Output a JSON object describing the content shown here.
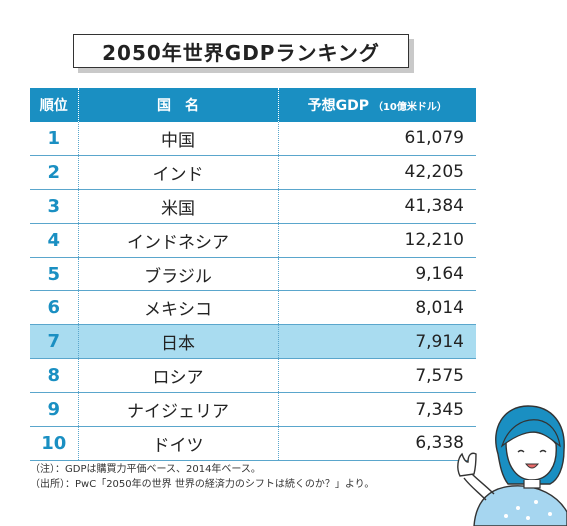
{
  "title": "2050年世界GDPランキング",
  "table": {
    "headers": {
      "rank": "順位",
      "country": "国　名",
      "gdp": "予想GDP",
      "gdp_unit": "（10億米ドル）"
    },
    "rows": [
      {
        "rank": "1",
        "country": "中国",
        "gdp": "61,079"
      },
      {
        "rank": "2",
        "country": "インド",
        "gdp": "42,205"
      },
      {
        "rank": "3",
        "country": "米国",
        "gdp": "41,384"
      },
      {
        "rank": "4",
        "country": "インドネシア",
        "gdp": "12,210"
      },
      {
        "rank": "5",
        "country": "ブラジル",
        "gdp": "9,164"
      },
      {
        "rank": "6",
        "country": "メキシコ",
        "gdp": "8,014"
      },
      {
        "rank": "7",
        "country": "日本",
        "gdp": "7,914"
      },
      {
        "rank": "8",
        "country": "ロシア",
        "gdp": "7,575"
      },
      {
        "rank": "9",
        "country": "ナイジェリア",
        "gdp": "7,345"
      },
      {
        "rank": "10",
        "country": "ドイツ",
        "gdp": "6,338"
      }
    ],
    "highlight_rank": "7",
    "highlight_color": "#a9dcf0",
    "header_color": "#1a8fc2"
  },
  "chart_data": {
    "type": "table",
    "title": "2050年世界GDPランキング",
    "columns": [
      "順位",
      "国　名",
      "予想GDP（10億米ドル）"
    ],
    "rows": [
      [
        1,
        "中国",
        61079
      ],
      [
        2,
        "インド",
        42205
      ],
      [
        3,
        "米国",
        41384
      ],
      [
        4,
        "インドネシア",
        12210
      ],
      [
        5,
        "ブラジル",
        9164
      ],
      [
        6,
        "メキシコ",
        8014
      ],
      [
        7,
        "日本",
        7914
      ],
      [
        8,
        "ロシア",
        7575
      ],
      [
        9,
        "ナイジェリア",
        7345
      ],
      [
        10,
        "ドイツ",
        6338
      ]
    ]
  },
  "notes": [
    "（注）：GDPは購買力平価ベース、2014年ベース。",
    "（出所）：PwC「2050年の世界 世界の経済力のシフトは続くのか？」より。"
  ],
  "illustration": "waving-person"
}
